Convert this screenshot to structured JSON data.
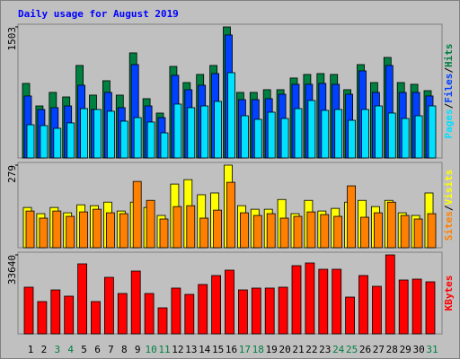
{
  "chart_data": [
    {
      "type": "bar",
      "title": "Daily usage for August 2019",
      "ylim": [
        0,
        1503
      ],
      "yticks": [
        1503
      ],
      "separator": "/",
      "series": [
        {
          "name": "Hits",
          "color": "#008040",
          "values": [
            855,
            597,
            752,
            700,
            1061,
            721,
            886,
            721,
            1205,
            680,
            515,
            1050,
            865,
            958,
            1061,
            1503,
            752,
            752,
            783,
            783,
            917,
            958,
            968,
            958,
            783,
            1071,
            865,
            1153,
            865,
            845,
            772
          ]
        },
        {
          "name": "Files",
          "color": "#0040ff",
          "values": [
            711,
            556,
            577,
            597,
            834,
            556,
            752,
            577,
            1071,
            597,
            463,
            948,
            783,
            834,
            968,
            1411,
            669,
            669,
            680,
            731,
            845,
            845,
            855,
            845,
            731,
            999,
            752,
            1061,
            752,
            752,
            711
          ]
        },
        {
          "name": "Pages",
          "color": "#00e0ff",
          "values": [
            381,
            371,
            340,
            402,
            566,
            556,
            536,
            422,
            463,
            412,
            288,
            618,
            577,
            597,
            649,
            978,
            484,
            443,
            525,
            453,
            566,
            659,
            546,
            556,
            432,
            556,
            597,
            515,
            453,
            484,
            597
          ]
        }
      ]
    },
    {
      "type": "bar",
      "ylim": [
        0,
        279
      ],
      "yticks": [
        279
      ],
      "separator": "/",
      "series": [
        {
          "name": "Visits",
          "color": "#ffff00",
          "values": [
            136,
            115,
            136,
            118,
            145,
            142,
            154,
            124,
            154,
            136,
            109,
            215,
            230,
            179,
            185,
            279,
            142,
            130,
            130,
            163,
            115,
            160,
            124,
            133,
            154,
            160,
            139,
            160,
            118,
            109,
            185
          ]
        },
        {
          "name": "Sites",
          "color": "#ff8000",
          "values": [
            124,
            100,
            124,
            106,
            121,
            130,
            118,
            115,
            224,
            160,
            97,
            139,
            142,
            100,
            127,
            221,
            118,
            109,
            115,
            100,
            106,
            121,
            112,
            106,
            209,
            103,
            118,
            154,
            109,
            97,
            115
          ]
        }
      ]
    },
    {
      "type": "bar",
      "ylim": [
        0,
        33640
      ],
      "yticks": [
        33640
      ],
      "categories": [
        "1",
        "2",
        "3",
        "4",
        "5",
        "6",
        "7",
        "8",
        "9",
        "10",
        "11",
        "12",
        "13",
        "14",
        "15",
        "16",
        "17",
        "18",
        "19",
        "20",
        "21",
        "22",
        "23",
        "24",
        "25",
        "26",
        "27",
        "28",
        "29",
        "30",
        "31"
      ],
      "label_colors": [
        "#000000",
        "#000000",
        "#008040",
        "#008040",
        "#000000",
        "#000000",
        "#000000",
        "#000000",
        "#000000",
        "#008040",
        "#008040",
        "#000000",
        "#000000",
        "#000000",
        "#000000",
        "#000000",
        "#008040",
        "#008040",
        "#000000",
        "#000000",
        "#000000",
        "#000000",
        "#000000",
        "#008040",
        "#008040",
        "#000000",
        "#000000",
        "#000000",
        "#000000",
        "#000000",
        "#008040"
      ],
      "series": [
        {
          "name": "KBytes",
          "color": "#ff0000",
          "values": [
            19880,
            13760,
            18730,
            16060,
            29820,
            13760,
            24080,
            17200,
            26760,
            17200,
            11090,
            19500,
            16820,
            21030,
            24850,
            27140,
            18730,
            19500,
            19500,
            19880,
            29050,
            30200,
            27520,
            27520,
            15670,
            24850,
            20260,
            33640,
            22940,
            23320,
            22170
          ]
        }
      ]
    }
  ]
}
